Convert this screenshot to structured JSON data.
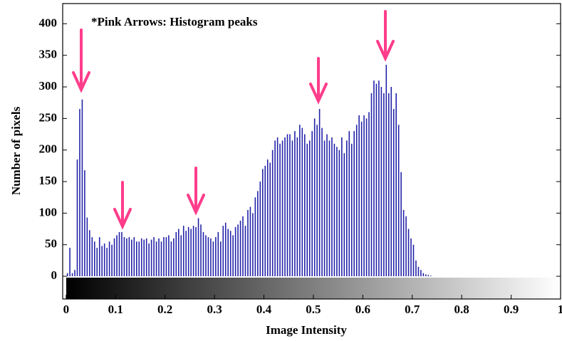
{
  "chart_data": {
    "type": "histogram",
    "annotation": "*Pink Arrows: Histogram peaks",
    "xlabel": "Image Intensity",
    "ylabel": "Number of pixels",
    "color": "#1f1fa8",
    "bins": [
      0,
      0.005,
      0.01,
      0.015,
      0.02,
      0.025,
      0.03,
      0.035,
      0.04,
      0.045,
      0.05,
      0.055,
      0.06,
      0.065,
      0.07,
      0.075,
      0.08,
      0.085,
      0.09,
      0.095,
      0.1,
      0.105,
      0.11,
      0.115,
      0.12,
      0.125,
      0.13,
      0.135,
      0.14,
      0.145,
      0.15,
      0.155,
      0.16,
      0.165,
      0.17,
      0.175,
      0.18,
      0.185,
      0.19,
      0.195,
      0.2,
      0.205,
      0.21,
      0.215,
      0.22,
      0.225,
      0.23,
      0.235,
      0.24,
      0.245,
      0.25,
      0.255,
      0.26,
      0.265,
      0.27,
      0.275,
      0.28,
      0.285,
      0.29,
      0.295,
      0.3,
      0.305,
      0.31,
      0.315,
      0.32,
      0.325,
      0.33,
      0.335,
      0.34,
      0.345,
      0.35,
      0.355,
      0.36,
      0.365,
      0.37,
      0.375,
      0.38,
      0.385,
      0.39,
      0.395,
      0.4,
      0.405,
      0.41,
      0.415,
      0.42,
      0.425,
      0.43,
      0.435,
      0.44,
      0.445,
      0.45,
      0.455,
      0.46,
      0.465,
      0.47,
      0.475,
      0.48,
      0.485,
      0.49,
      0.495,
      0.5,
      0.505,
      0.51,
      0.515,
      0.52,
      0.525,
      0.53,
      0.535,
      0.54,
      0.545,
      0.55,
      0.555,
      0.56,
      0.565,
      0.57,
      0.575,
      0.58,
      0.585,
      0.59,
      0.595,
      0.6,
      0.605,
      0.61,
      0.615,
      0.62,
      0.625,
      0.63,
      0.635,
      0.64,
      0.645,
      0.65,
      0.655,
      0.66,
      0.665,
      0.67,
      0.675,
      0.68,
      0.685,
      0.69,
      0.695,
      0.7,
      0.705,
      0.71,
      0.715,
      0.72,
      0.725,
      0.73,
      0.735,
      0.74,
      0.745,
      0.75
    ],
    "values": [
      5,
      45,
      5,
      10,
      185,
      265,
      280,
      168,
      93,
      73,
      62,
      55,
      45,
      62,
      48,
      52,
      45,
      55,
      50,
      60,
      65,
      70,
      70,
      62,
      60,
      62,
      58,
      62,
      55,
      55,
      60,
      58,
      60,
      52,
      58,
      62,
      55,
      60,
      55,
      62,
      62,
      65,
      55,
      60,
      70,
      75,
      65,
      80,
      72,
      78,
      75,
      80,
      78,
      92,
      82,
      70,
      65,
      62,
      60,
      55,
      62,
      70,
      55,
      80,
      85,
      75,
      72,
      65,
      78,
      82,
      88,
      95,
      80,
      105,
      110,
      100,
      125,
      135,
      150,
      170,
      175,
      185,
      180,
      200,
      215,
      220,
      210,
      215,
      220,
      225,
      225,
      215,
      230,
      220,
      240,
      235,
      225,
      210,
      215,
      230,
      250,
      240,
      265,
      235,
      215,
      225,
      215,
      220,
      210,
      205,
      200,
      220,
      195,
      215,
      230,
      210,
      230,
      240,
      255,
      245,
      255,
      250,
      260,
      290,
      310,
      305,
      310,
      300,
      290,
      335,
      290,
      300,
      265,
      290,
      240,
      165,
      105,
      95,
      75,
      60,
      50,
      25,
      15,
      10,
      5,
      3,
      2,
      1,
      0,
      0
    ],
    "xlim": [
      -0.007,
      1
    ],
    "ylim": [
      -36,
      432
    ],
    "xticks": [
      0,
      0.1,
      0.2,
      0.3,
      0.4,
      0.5,
      0.6,
      0.7,
      0.8,
      0.9,
      1
    ],
    "yticks": [
      0,
      50,
      100,
      150,
      200,
      250,
      300,
      350,
      400
    ]
  }
}
